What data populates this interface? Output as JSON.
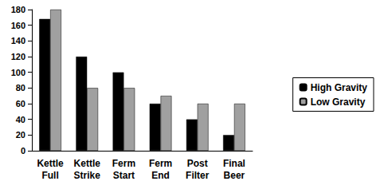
{
  "chart_data": {
    "type": "bar",
    "categories": [
      "Kettle Full",
      "Kettle Strike",
      "Ferm Start",
      "Ferm End",
      "Post Filter",
      "Final Beer"
    ],
    "series": [
      {
        "name": "High Gravity",
        "color": "#000000",
        "values": [
          168,
          120,
          100,
          60,
          40,
          20
        ]
      },
      {
        "name": "Low Gravity",
        "color": "#a0a0a0",
        "values": [
          180,
          80,
          80,
          70,
          60,
          60
        ]
      }
    ],
    "ylim": [
      0,
      180
    ],
    "yticks": [
      0,
      20,
      40,
      60,
      80,
      100,
      120,
      140,
      160,
      180
    ],
    "grid": false,
    "legend": "right"
  }
}
